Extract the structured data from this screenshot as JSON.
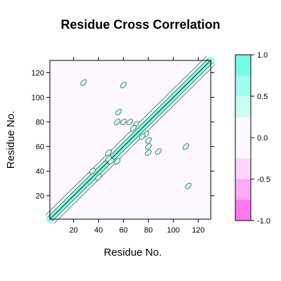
{
  "chart_data": {
    "type": "heatmap",
    "title": "Residue Cross Correlation",
    "xlabel": "Residue No.",
    "ylabel": "Residue No.",
    "xlim": [
      1,
      130
    ],
    "ylim": [
      1,
      130
    ],
    "xticks": [
      20,
      40,
      60,
      80,
      100,
      120
    ],
    "yticks": [
      20,
      40,
      60,
      80,
      100,
      120
    ],
    "colorkey": {
      "levels": [
        -1.0,
        -0.75,
        -0.5,
        -0.25,
        0.0,
        0.25,
        0.5,
        0.75,
        1.0
      ],
      "colors": [
        "#ff77ee",
        "#ffaaf5",
        "#ffd4fa",
        "#fdf8ff",
        "#fdf8ff",
        "#ccfdf2",
        "#a1fcec",
        "#77fbe6"
      ],
      "tick_labels": [
        "-1.0",
        "-0.5",
        "0.0",
        "0.5",
        "1.0"
      ],
      "tick_values": [
        -1.0,
        -0.5,
        0.0,
        0.5,
        1.0
      ]
    },
    "diagonal_band": [
      1,
      130
    ],
    "correlated_patches": [
      {
        "x": 35,
        "y": 40,
        "value": 0.3
      },
      {
        "x": 48,
        "y": 50,
        "value": 0.3
      },
      {
        "x": 55,
        "y": 48,
        "value": 0.3
      },
      {
        "x": 60,
        "y": 80,
        "value": 0.3
      },
      {
        "x": 70,
        "y": 78,
        "value": 0.3
      },
      {
        "x": 75,
        "y": 68,
        "value": 0.3
      },
      {
        "x": 80,
        "y": 65,
        "value": 0.3
      },
      {
        "x": 88,
        "y": 56,
        "value": 0.3
      },
      {
        "x": 112,
        "y": 28,
        "value": 0.3
      },
      {
        "x": 55,
        "y": 80,
        "value": 0.3
      },
      {
        "x": 110,
        "y": 60,
        "value": 0.3
      }
    ],
    "grid": false
  }
}
